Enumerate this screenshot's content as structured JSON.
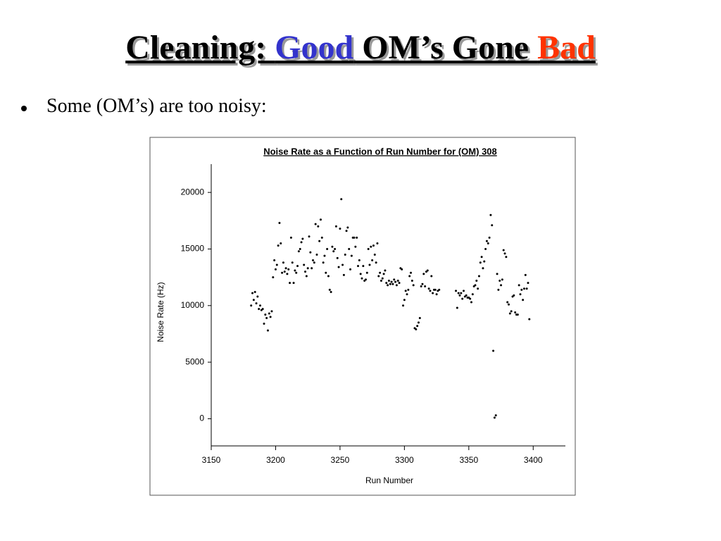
{
  "title_parts": [
    {
      "text": "Cleaning: ",
      "color": "#000000"
    },
    {
      "text": "Good",
      "color": "#3333cc"
    },
    {
      "text": " OM’s Gone ",
      "color": "#000000"
    },
    {
      "text": "Bad",
      "color": "#ff3300"
    }
  ],
  "bullet": "Some (OM’s) are too noisy:",
  "chart_data": {
    "type": "scatter",
    "title": "Noise Rate as a Function of Run Number for (OM) 308",
    "xlabel": "Run Number",
    "ylabel": "Noise Rate (Hz)",
    "xlim": [
      3150,
      3425
    ],
    "ylim": [
      -2400,
      22500
    ],
    "xticks": [
      3150,
      3200,
      3250,
      3300,
      3350,
      3400
    ],
    "yticks": [
      0,
      5000,
      10000,
      15000,
      20000
    ],
    "color": "#000000",
    "x": [
      3181,
      3182,
      3183,
      3184,
      3185,
      3186,
      3187,
      3188,
      3189,
      3190,
      3191,
      3192,
      3193,
      3194,
      3195,
      3196,
      3197,
      3198,
      3199,
      3200,
      3201,
      3202,
      3203,
      3204,
      3205,
      3206,
      3207,
      3208,
      3209,
      3210,
      3211,
      3212,
      3213,
      3214,
      3215,
      3216,
      3217,
      3218,
      3219,
      3220,
      3221,
      3222,
      3223,
      3224,
      3225,
      3226,
      3227,
      3228,
      3229,
      3230,
      3231,
      3232,
      3233,
      3234,
      3235,
      3236,
      3237,
      3238,
      3239,
      3240,
      3241,
      3242,
      3243,
      3244,
      3245,
      3246,
      3247,
      3248,
      3249,
      3250,
      3251,
      3252,
      3253,
      3254,
      3255,
      3256,
      3257,
      3258,
      3259,
      3260,
      3261,
      3262,
      3263,
      3264,
      3265,
      3266,
      3267,
      3268,
      3269,
      3270,
      3271,
      3272,
      3273,
      3274,
      3275,
      3276,
      3277,
      3278,
      3279,
      3280,
      3281,
      3282,
      3283,
      3284,
      3285,
      3286,
      3287,
      3288,
      3289,
      3290,
      3291,
      3292,
      3293,
      3294,
      3295,
      3296,
      3297,
      3298,
      3299,
      3300,
      3301,
      3302,
      3303,
      3304,
      3305,
      3306,
      3307,
      3308,
      3309,
      3310,
      3311,
      3312,
      3313,
      3314,
      3315,
      3316,
      3317,
      3318,
      3319,
      3320,
      3321,
      3322,
      3323,
      3324,
      3325,
      3326,
      3327,
      3340,
      3341,
      3342,
      3343,
      3344,
      3345,
      3346,
      3347,
      3348,
      3349,
      3350,
      3351,
      3352,
      3353,
      3354,
      3355,
      3356,
      3357,
      3358,
      3359,
      3360,
      3361,
      3362,
      3363,
      3364,
      3365,
      3366,
      3367,
      3368,
      3369,
      3370,
      3371,
      3372,
      3373,
      3374,
      3375,
      3376,
      3377,
      3378,
      3379,
      3380,
      3381,
      3382,
      3383,
      3384,
      3385,
      3386,
      3387,
      3388,
      3389,
      3390,
      3391,
      3392,
      3393,
      3394,
      3395,
      3396,
      3397
    ],
    "values": [
      10000,
      11100,
      10500,
      11200,
      10200,
      10800,
      9700,
      10000,
      9600,
      9700,
      8400,
      9200,
      8900,
      7800,
      9300,
      9000,
      9500,
      12500,
      14000,
      13200,
      13600,
      15300,
      17300,
      15500,
      12900,
      13800,
      13000,
      13300,
      12800,
      13200,
      12000,
      16000,
      13800,
      12000,
      13100,
      12900,
      13500,
      14800,
      15000,
      15600,
      15900,
      13600,
      13000,
      12600,
      13300,
      16100,
      14700,
      13300,
      14000,
      13800,
      17200,
      14500,
      17000,
      15700,
      17600,
      16000,
      13800,
      14400,
      12900,
      15000,
      12600,
      11400,
      11200,
      15200,
      14800,
      15000,
      17000,
      14200,
      13400,
      16800,
      19400,
      13600,
      12700,
      14500,
      16600,
      16900,
      15000,
      13200,
      14400,
      16000,
      16000,
      15200,
      16000,
      13500,
      14000,
      12800,
      12400,
      13500,
      12200,
      12300,
      12900,
      15000,
      13600,
      15200,
      14000,
      15300,
      14500,
      13800,
      15500,
      12600,
      12900,
      12200,
      12400,
      12800,
      13100,
      12000,
      11800,
      12200,
      11900,
      12100,
      11900,
      12300,
      12100,
      11800,
      12200,
      12000,
      13300,
      13200,
      10000,
      10500,
      11300,
      11000,
      11400,
      12600,
      12900,
      12200,
      11800,
      8000,
      7900,
      8200,
      8500,
      8900,
      11700,
      11900,
      12800,
      11700,
      13000,
      13100,
      11500,
      11300,
      12600,
      11100,
      11400,
      11400,
      11000,
      11300,
      11400,
      11300,
      9800,
      11100,
      10900,
      11100,
      10600,
      11300,
      10800,
      10900,
      10700,
      10700,
      10600,
      10300,
      11000,
      11700,
      11800,
      12200,
      11500,
      12600,
      13800,
      14300,
      13300,
      13900,
      15000,
      15700,
      15500,
      16000,
      18000,
      17100,
      6000,
      100,
      300,
      12800,
      11400,
      12200,
      11800,
      12300,
      14900,
      14600,
      14300,
      10300,
      10100,
      9300,
      9500,
      10800,
      10900,
      9400,
      9200,
      9200,
      11800,
      11000,
      11400,
      10500,
      11500,
      12700,
      11500,
      12000,
      8800
    ]
  }
}
